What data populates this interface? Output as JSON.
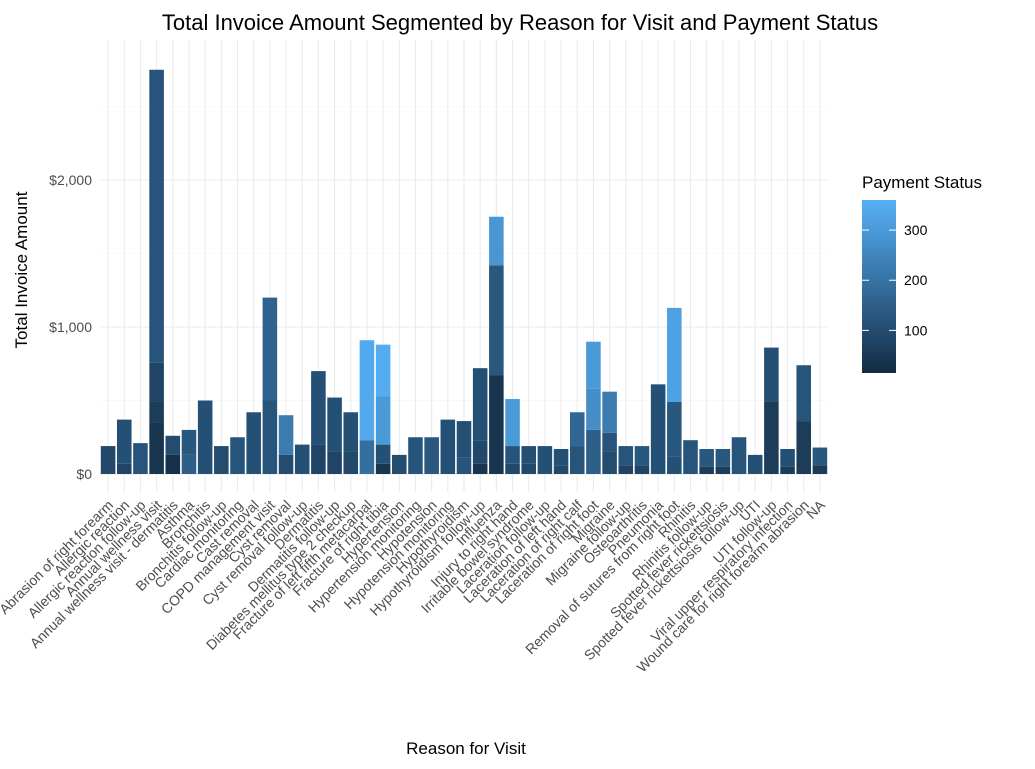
{
  "chart_data": {
    "type": "bar",
    "stacked": true,
    "title": "Total Invoice Amount Segmented by Reason for Visit and Payment Status",
    "xlabel": "Reason for Visit",
    "ylabel": "Total Invoice Amount",
    "ylim": [
      0,
      2800
    ],
    "y_ticks": [
      0,
      1000,
      2000
    ],
    "y_tick_labels": [
      "$0",
      "$1,000",
      "$2,000"
    ],
    "grid": true,
    "legend": {
      "title": "Payment Status",
      "type": "colorbar",
      "position": "right",
      "range": [
        15,
        360
      ],
      "ticks": [
        100,
        200,
        300
      ],
      "low_color": "#132b43",
      "high_color": "#56b1f7"
    },
    "categories": [
      "Abrasion of right forearm",
      "Allergic reaction",
      "Allergic reaction follow-up",
      "Annual wellness visit",
      "Annual wellness visit - dermatitis",
      "Asthma",
      "Bronchitis",
      "Bronchitis follow-up",
      "Cardiac monitoring",
      "Cast removal",
      "COPD management visit",
      "Cyst removal",
      "Cyst removal follow-up",
      "Dermatitis",
      "Dermatitis follow-up",
      "Diabetes mellitus type 2 checkup",
      "Fracture of left fifth metacarpal",
      "Fracture of right tibia",
      "Hypertension",
      "Hypertension monitoring",
      "Hypotension",
      "Hypotension monitoring",
      "Hypothyroidism",
      "Hypothyroidism follow-up",
      "Influenza",
      "Injury to right hand",
      "Irritable bowel syndrome",
      "Laceration follow-up",
      "Laceration of left hand",
      "Laceration of right calf",
      "Laceration of right foot",
      "Migraine",
      "Migraine follow-up",
      "Osteoarthritis",
      "Pneumonia",
      "Removal of sutures from right foot",
      "Rhinitis",
      "Rhinitis follow-up",
      "Spotted fever rickettsiosis",
      "Spotted fever rickettsiosis follow-up",
      "UTI",
      "UTI follow-up",
      "Viral upper respiratory infection",
      "Wound care for right forearm abrasion",
      "NA"
    ],
    "stacks": [
      [
        {
          "value": 190,
          "status": 90
        }
      ],
      [
        {
          "value": 70,
          "status": 80
        },
        {
          "value": 300,
          "status": 110
        }
      ],
      [
        {
          "value": 210,
          "status": 120
        }
      ],
      [
        {
          "value": 350,
          "status": 40
        },
        {
          "value": 140,
          "status": 60
        },
        {
          "value": 270,
          "status": 80
        },
        {
          "value": 1990,
          "status": 120
        }
      ],
      [
        {
          "value": 130,
          "status": 30
        },
        {
          "value": 130,
          "status": 100
        }
      ],
      [
        {
          "value": 130,
          "status": 150
        },
        {
          "value": 170,
          "status": 130
        }
      ],
      [
        {
          "value": 500,
          "status": 110
        }
      ],
      [
        {
          "value": 190,
          "status": 100
        }
      ],
      [
        {
          "value": 250,
          "status": 120
        }
      ],
      [
        {
          "value": 420,
          "status": 110
        }
      ],
      [
        {
          "value": 500,
          "status": 120
        },
        {
          "value": 700,
          "status": 160
        }
      ],
      [
        {
          "value": 130,
          "status": 100
        },
        {
          "value": 270,
          "status": 220
        }
      ],
      [
        {
          "value": 200,
          "status": 110
        }
      ],
      [
        {
          "value": 200,
          "status": 80
        },
        {
          "value": 500,
          "status": 110
        }
      ],
      [
        {
          "value": 150,
          "status": 80
        },
        {
          "value": 370,
          "status": 110
        }
      ],
      [
        {
          "value": 150,
          "status": 90
        },
        {
          "value": 270,
          "status": 110
        }
      ],
      [
        {
          "value": 230,
          "status": 190
        },
        {
          "value": 680,
          "status": 340
        }
      ],
      [
        {
          "value": 70,
          "status": 40
        },
        {
          "value": 130,
          "status": 110
        },
        {
          "value": 330,
          "status": 300
        },
        {
          "value": 350,
          "status": 350
        }
      ],
      [
        {
          "value": 130,
          "status": 100
        }
      ],
      [
        {
          "value": 250,
          "status": 120
        }
      ],
      [
        {
          "value": 250,
          "status": 130
        }
      ],
      [
        {
          "value": 370,
          "status": 110
        }
      ],
      [
        {
          "value": 110,
          "status": 120
        },
        {
          "value": 250,
          "status": 110
        }
      ],
      [
        {
          "value": 70,
          "status": 40
        },
        {
          "value": 160,
          "status": 90
        },
        {
          "value": 490,
          "status": 110
        }
      ],
      [
        {
          "value": 670,
          "status": 40
        },
        {
          "value": 750,
          "status": 130
        },
        {
          "value": 330,
          "status": 290
        }
      ],
      [
        {
          "value": 70,
          "status": 90
        },
        {
          "value": 120,
          "status": 120
        },
        {
          "value": 320,
          "status": 300
        }
      ],
      [
        {
          "value": 70,
          "status": 90
        },
        {
          "value": 120,
          "status": 110
        }
      ],
      [
        {
          "value": 190,
          "status": 110
        }
      ],
      [
        {
          "value": 60,
          "status": 90
        },
        {
          "value": 110,
          "status": 110
        }
      ],
      [
        {
          "value": 190,
          "status": 120
        },
        {
          "value": 230,
          "status": 170
        }
      ],
      [
        {
          "value": 300,
          "status": 150
        },
        {
          "value": 280,
          "status": 270
        },
        {
          "value": 320,
          "status": 300
        }
      ],
      [
        {
          "value": 150,
          "status": 100
        },
        {
          "value": 130,
          "status": 120
        },
        {
          "value": 280,
          "status": 220
        }
      ],
      [
        {
          "value": 60,
          "status": 80
        },
        {
          "value": 130,
          "status": 120
        }
      ],
      [
        {
          "value": 60,
          "status": 80
        },
        {
          "value": 130,
          "status": 130
        }
      ],
      [
        {
          "value": 610,
          "status": 110
        }
      ],
      [
        {
          "value": 120,
          "status": 110
        },
        {
          "value": 370,
          "status": 130
        },
        {
          "value": 640,
          "status": 320
        }
      ],
      [
        {
          "value": 230,
          "status": 120
        }
      ],
      [
        {
          "value": 50,
          "status": 60
        },
        {
          "value": 120,
          "status": 130
        }
      ],
      [
        {
          "value": 50,
          "status": 60
        },
        {
          "value": 120,
          "status": 130
        }
      ],
      [
        {
          "value": 250,
          "status": 120
        }
      ],
      [
        {
          "value": 130,
          "status": 110
        }
      ],
      [
        {
          "value": 490,
          "status": 60
        },
        {
          "value": 370,
          "status": 110
        }
      ],
      [
        {
          "value": 50,
          "status": 60
        },
        {
          "value": 120,
          "status": 110
        }
      ],
      [
        {
          "value": 360,
          "status": 60
        },
        {
          "value": 380,
          "status": 120
        }
      ],
      [
        {
          "value": 60,
          "status": 60
        },
        {
          "value": 120,
          "status": 130
        }
      ]
    ]
  }
}
